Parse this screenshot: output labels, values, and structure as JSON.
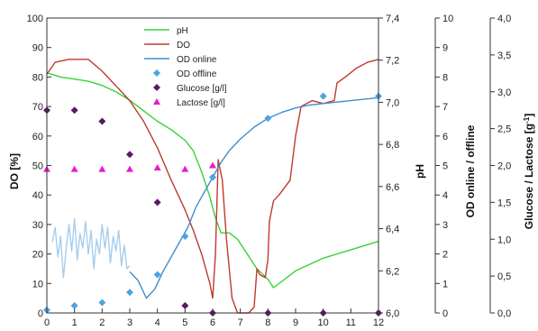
{
  "chart_data": {
    "type": "line",
    "title": "",
    "grid": false,
    "legend_position": "top-center",
    "x": {
      "label": "",
      "range": [
        0,
        12
      ],
      "ticks": [
        "0",
        "1",
        "2",
        "3",
        "4",
        "5",
        "6",
        "7",
        "8",
        "9",
        "10",
        "11",
        "12"
      ]
    },
    "axes": {
      "do": {
        "label": "DO [%]",
        "range": [
          0,
          100
        ],
        "ticks": [
          "0",
          "10",
          "20",
          "30",
          "40",
          "50",
          "60",
          "70",
          "80",
          "90",
          "100"
        ]
      },
      "ph": {
        "label": "pH",
        "range": [
          6.0,
          7.4
        ],
        "ticks": [
          "6,0",
          "6,2",
          "6,4",
          "6,6",
          "6,8",
          "7,0",
          "7,2",
          "7,4"
        ]
      },
      "od": {
        "label": "OD online / offline",
        "range": [
          0,
          10
        ],
        "ticks": [
          "0",
          "1",
          "2",
          "3",
          "4",
          "5",
          "6",
          "7",
          "8",
          "9",
          "10"
        ]
      },
      "sugar": {
        "label_prefix": "Glucose / Lactose [g",
        "label_sup": "-1",
        "label_suffix": "]",
        "range": [
          0,
          4
        ],
        "ticks": [
          "0,0",
          "0,5",
          "1,0",
          "1,5",
          "2,0",
          "2,5",
          "3,0",
          "3,5",
          "4,0"
        ]
      }
    },
    "series": [
      {
        "name": "pH",
        "axis": "ph",
        "style": "line",
        "color": "#35d435",
        "points": [
          [
            0,
            7.14
          ],
          [
            0.5,
            7.12
          ],
          [
            1,
            7.11
          ],
          [
            1.5,
            7.1
          ],
          [
            2,
            7.08
          ],
          [
            2.5,
            7.05
          ],
          [
            3,
            7.01
          ],
          [
            3.5,
            6.96
          ],
          [
            4,
            6.91
          ],
          [
            4.5,
            6.87
          ],
          [
            5,
            6.82
          ],
          [
            5.3,
            6.77
          ],
          [
            5.6,
            6.67
          ],
          [
            5.9,
            6.55
          ],
          [
            6.1,
            6.45
          ],
          [
            6.3,
            6.38
          ],
          [
            6.6,
            6.38
          ],
          [
            6.9,
            6.35
          ],
          [
            7.2,
            6.29
          ],
          [
            7.6,
            6.21
          ],
          [
            8,
            6.16
          ],
          [
            8.2,
            6.12
          ],
          [
            8.5,
            6.15
          ],
          [
            9,
            6.2
          ],
          [
            9.5,
            6.23
          ],
          [
            10,
            6.26
          ],
          [
            11,
            6.3
          ],
          [
            12,
            6.34
          ]
        ]
      },
      {
        "name": "DO",
        "axis": "do",
        "style": "line",
        "color": "#c0392b",
        "points": [
          [
            0,
            81
          ],
          [
            0.3,
            85
          ],
          [
            0.8,
            86
          ],
          [
            1.5,
            86
          ],
          [
            2,
            82
          ],
          [
            2.5,
            77
          ],
          [
            3,
            72
          ],
          [
            3.5,
            65
          ],
          [
            4,
            56
          ],
          [
            4.5,
            45
          ],
          [
            5,
            35
          ],
          [
            5.3,
            28
          ],
          [
            5.6,
            20
          ],
          [
            5.9,
            10
          ],
          [
            6.0,
            5
          ],
          [
            6.1,
            20
          ],
          [
            6.2,
            52
          ],
          [
            6.35,
            45
          ],
          [
            6.5,
            25
          ],
          [
            6.7,
            5
          ],
          [
            6.9,
            0
          ],
          [
            7.3,
            0
          ],
          [
            7.5,
            2
          ],
          [
            7.6,
            15
          ],
          [
            7.7,
            13
          ],
          [
            7.9,
            12
          ],
          [
            8.0,
            18
          ],
          [
            8.05,
            31
          ],
          [
            8.2,
            38
          ],
          [
            8.4,
            40
          ],
          [
            8.8,
            45
          ],
          [
            9.0,
            60
          ],
          [
            9.2,
            70
          ],
          [
            9.6,
            72
          ],
          [
            10.0,
            71
          ],
          [
            10.4,
            72
          ],
          [
            10.5,
            78
          ],
          [
            10.8,
            80
          ],
          [
            11.2,
            83
          ],
          [
            11.6,
            85
          ],
          [
            12,
            86
          ]
        ]
      },
      {
        "name": "OD online",
        "axis": "od",
        "style": "line",
        "color": "#3e8ed0",
        "points": [
          [
            3,
            1.4
          ],
          [
            3.3,
            1.1
          ],
          [
            3.6,
            0.5
          ],
          [
            3.9,
            0.8
          ],
          [
            4.2,
            1.4
          ],
          [
            4.5,
            1.9
          ],
          [
            4.8,
            2.4
          ],
          [
            5.1,
            2.9
          ],
          [
            5.4,
            3.6
          ],
          [
            5.7,
            4.1
          ],
          [
            6.0,
            4.6
          ],
          [
            6.3,
            5.1
          ],
          [
            6.6,
            5.5
          ],
          [
            7.0,
            5.9
          ],
          [
            7.5,
            6.3
          ],
          [
            8.0,
            6.6
          ],
          [
            8.5,
            6.8
          ],
          [
            9.0,
            6.95
          ],
          [
            9.5,
            7.05
          ],
          [
            10.0,
            7.1
          ],
          [
            10.5,
            7.15
          ],
          [
            11.0,
            7.2
          ],
          [
            11.5,
            7.25
          ],
          [
            12,
            7.3
          ]
        ]
      },
      {
        "name": "",
        "axis": "od",
        "style": "line",
        "color": "#a8cdea",
        "points": [
          [
            0.2,
            2.4
          ],
          [
            0.3,
            2.9
          ],
          [
            0.4,
            1.9
          ],
          [
            0.5,
            2.6
          ],
          [
            0.6,
            1.2
          ],
          [
            0.7,
            2.2
          ],
          [
            0.8,
            3.0
          ],
          [
            0.9,
            2.1
          ],
          [
            1.0,
            3.2
          ],
          [
            1.1,
            1.8
          ],
          [
            1.2,
            2.7
          ],
          [
            1.3,
            2.2
          ],
          [
            1.4,
            3.1
          ],
          [
            1.5,
            2.0
          ],
          [
            1.6,
            2.8
          ],
          [
            1.7,
            1.5
          ],
          [
            1.8,
            2.5
          ],
          [
            1.9,
            2.0
          ],
          [
            2.0,
            3.0
          ],
          [
            2.1,
            2.2
          ],
          [
            2.2,
            2.9
          ],
          [
            2.3,
            1.7
          ],
          [
            2.4,
            2.6
          ],
          [
            2.5,
            2.1
          ],
          [
            2.6,
            2.8
          ],
          [
            2.7,
            1.6
          ],
          [
            2.8,
            2.3
          ],
          [
            2.9,
            1.5
          ],
          [
            3.0,
            1.6
          ]
        ]
      },
      {
        "name": "OD offline",
        "axis": "od",
        "style": "marker",
        "marker": "diamond",
        "color": "#4fa3e0",
        "points": [
          [
            0,
            0.1
          ],
          [
            1,
            0.25
          ],
          [
            2,
            0.35
          ],
          [
            3,
            0.7
          ],
          [
            4,
            1.3
          ],
          [
            5,
            2.6
          ],
          [
            6,
            4.6
          ],
          [
            8,
            6.6
          ],
          [
            10,
            7.35
          ],
          [
            12,
            7.35
          ]
        ]
      },
      {
        "name": "Glucose [g/l]",
        "axis": "sugar",
        "style": "marker",
        "marker": "diamond",
        "color": "#5b1a66",
        "points": [
          [
            0,
            2.75
          ],
          [
            1,
            2.75
          ],
          [
            2,
            2.6
          ],
          [
            3,
            2.15
          ],
          [
            4,
            1.5
          ],
          [
            5,
            0.1
          ],
          [
            6,
            0.0
          ],
          [
            8,
            0.0
          ],
          [
            10,
            0.0
          ],
          [
            12,
            0.0
          ]
        ]
      },
      {
        "name": "Lactose [g/l]",
        "axis": "sugar",
        "style": "marker",
        "marker": "triangle",
        "color": "#e31ec8",
        "points": [
          [
            0,
            1.95
          ],
          [
            1,
            1.95
          ],
          [
            2,
            1.95
          ],
          [
            3,
            1.95
          ],
          [
            4,
            1.97
          ],
          [
            5,
            1.95
          ],
          [
            6,
            2.0
          ]
        ]
      }
    ]
  }
}
